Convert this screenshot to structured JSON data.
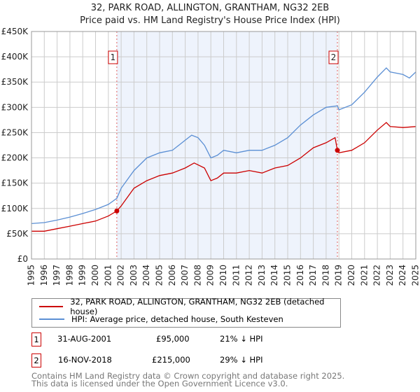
{
  "title": "32, PARK ROAD, ALLINGTON, GRANTHAM, NG32 2EB",
  "subtitle": "Price paid vs. HM Land Registry's House Price Index (HPI)",
  "colors": {
    "property": "#cc0000",
    "hpi": "#5b8fd4",
    "shade": "#eef3fc"
  },
  "legend": {
    "property": "32, PARK ROAD, ALLINGTON, GRANTHAM, NG32 2EB (detached house)",
    "hpi": "HPI: Average price, detached house, South Kesteven"
  },
  "sales": [
    {
      "num": "1",
      "date": "31-AUG-2001",
      "price": "£95,000",
      "delta": "21% ↓ HPI"
    },
    {
      "num": "2",
      "date": "16-NOV-2018",
      "price": "£215,000",
      "delta": "29% ↓ HPI"
    }
  ],
  "footer": [
    "Contains HM Land Registry data © Crown copyright and database right 2025.",
    "This data is licensed under the Open Government Licence v3.0."
  ],
  "chart_data": {
    "type": "line",
    "xlim": [
      1995,
      2025
    ],
    "ylim": [
      0,
      450000
    ],
    "x_ticks": [
      "1995",
      "1996",
      "1997",
      "1998",
      "1999",
      "2000",
      "2001",
      "2002",
      "2003",
      "2004",
      "2005",
      "2006",
      "2007",
      "2008",
      "2009",
      "2010",
      "2011",
      "2012",
      "2013",
      "2014",
      "2015",
      "2016",
      "2017",
      "2018",
      "2019",
      "2020",
      "2021",
      "2022",
      "2023",
      "2024",
      "2025"
    ],
    "y_ticks": [
      {
        "v": 0,
        "label": "£0"
      },
      {
        "v": 50000,
        "label": "£50K"
      },
      {
        "v": 100000,
        "label": "£100K"
      },
      {
        "v": 150000,
        "label": "£150K"
      },
      {
        "v": 200000,
        "label": "£200K"
      },
      {
        "v": 250000,
        "label": "£250K"
      },
      {
        "v": 300000,
        "label": "£300K"
      },
      {
        "v": 350000,
        "label": "£350K"
      },
      {
        "v": 400000,
        "label": "£400K"
      },
      {
        "v": 450000,
        "label": "£450K"
      }
    ],
    "shade_range": [
      2001.66,
      2018.88
    ],
    "markers": [
      {
        "label": "1",
        "x": 2001.66,
        "y": 95000
      },
      {
        "label": "2",
        "x": 2018.88,
        "y": 215000
      }
    ],
    "series": [
      {
        "name": "property",
        "x": [
          1995,
          1996,
          1997,
          1998,
          1999,
          2000,
          2001,
          2001.66,
          2002,
          2003,
          2004,
          2005,
          2006,
          2007,
          2007.7,
          2008.5,
          2009,
          2009.5,
          2010,
          2011,
          2012,
          2013,
          2014,
          2015,
          2016,
          2017,
          2018,
          2018.7,
          2018.88,
          2019,
          2020,
          2021,
          2022,
          2022.7,
          2023,
          2024,
          2025
        ],
        "y": [
          55000,
          55000,
          60000,
          65000,
          70000,
          75000,
          85000,
          95000,
          105000,
          140000,
          155000,
          165000,
          170000,
          180000,
          190000,
          180000,
          155000,
          160000,
          170000,
          170000,
          175000,
          170000,
          180000,
          185000,
          200000,
          220000,
          230000,
          240000,
          215000,
          210000,
          215000,
          230000,
          255000,
          270000,
          262000,
          260000,
          262000
        ]
      },
      {
        "name": "hpi",
        "x": [
          1995,
          1996,
          1997,
          1998,
          1999,
          2000,
          2001,
          2001.66,
          2002,
          2003,
          2004,
          2005,
          2006,
          2007,
          2007.5,
          2008,
          2008.5,
          2009,
          2009.5,
          2010,
          2011,
          2012,
          2013,
          2014,
          2015,
          2016,
          2017,
          2018,
          2018.88,
          2019,
          2020,
          2021,
          2022,
          2022.7,
          2023,
          2024,
          2024.5,
          2025
        ],
        "y": [
          70000,
          72000,
          77000,
          83000,
          90000,
          98000,
          108000,
          120000,
          140000,
          175000,
          200000,
          210000,
          215000,
          235000,
          245000,
          240000,
          225000,
          200000,
          205000,
          215000,
          210000,
          215000,
          215000,
          225000,
          240000,
          265000,
          285000,
          300000,
          303000,
          295000,
          305000,
          330000,
          360000,
          378000,
          370000,
          365000,
          358000,
          370000
        ]
      }
    ]
  }
}
